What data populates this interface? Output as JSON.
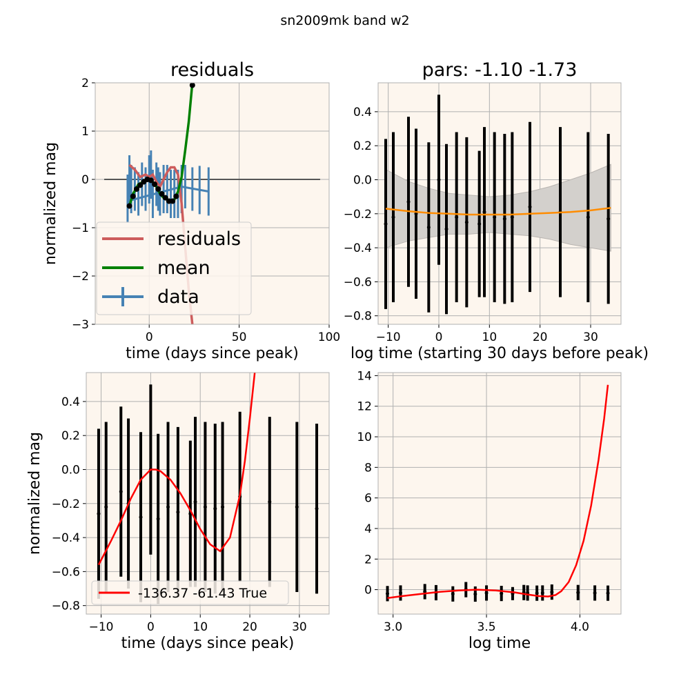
{
  "figure": {
    "title": "sn2009mk band w2"
  },
  "colors": {
    "background": "#fdf6ee",
    "grid": "#b0b0b0",
    "residuals": "#cd5c5c",
    "mean": "#008000",
    "data": "#4682b4",
    "zero_line": "#555555",
    "orange": "#ff8c00",
    "band": "#d3d0cc",
    "fit": "#ff0000",
    "errorbar": "#000000"
  },
  "chart_data": [
    {
      "type": "line",
      "title": "residuals",
      "xlabel": "time (days since peak)",
      "ylabel": "normalized mag",
      "xlim": [
        -30,
        100
      ],
      "ylim": [
        -3,
        2
      ],
      "xticks": [
        0,
        50,
        100
      ],
      "yticks": [
        -3,
        -2,
        -1,
        0,
        1,
        2
      ],
      "grid": true,
      "legend": {
        "placement": "lower-left",
        "entries": [
          "residuals",
          "mean",
          "data"
        ]
      },
      "zero_line": {
        "x": [
          -25,
          95
        ],
        "y": 0
      },
      "data_series": {
        "name": "data",
        "x": [
          -12,
          -11,
          -10,
          -8,
          -6,
          -4,
          -2,
          0,
          1,
          2,
          4,
          5,
          6,
          8,
          10,
          12,
          14,
          16,
          18,
          20,
          24,
          28,
          33
        ],
        "y": [
          -0.4,
          0.0,
          -0.2,
          -0.2,
          -0.3,
          -0.1,
          -0.2,
          0.0,
          0.1,
          -0.3,
          -0.1,
          -0.2,
          -0.3,
          -0.2,
          -0.2,
          -0.3,
          -0.3,
          -0.3,
          -0.2,
          -0.15,
          -0.2,
          -0.22,
          -0.25
        ],
        "yerr": [
          0.5,
          0.5,
          0.5,
          0.45,
          0.45,
          0.45,
          0.45,
          0.5,
          0.5,
          0.5,
          0.45,
          0.45,
          0.45,
          0.5,
          0.5,
          0.5,
          0.5,
          0.5,
          0.5,
          0.45,
          0.45,
          0.5,
          0.5
        ]
      },
      "data_line": {
        "x": [
          -12,
          18,
          33
        ],
        "y": [
          -0.45,
          -0.15,
          -0.25
        ]
      },
      "mean_series": {
        "name": "mean",
        "x": [
          -11,
          -9,
          -6,
          -3,
          0,
          2,
          4,
          6,
          8,
          10,
          12,
          14,
          16,
          18,
          20,
          22,
          24
        ],
        "y": [
          -0.55,
          -0.3,
          -0.1,
          -0.05,
          0.0,
          -0.05,
          -0.15,
          -0.3,
          -0.38,
          -0.42,
          -0.45,
          -0.42,
          -0.25,
          0.05,
          0.6,
          1.2,
          2.0
        ]
      },
      "mean_points": {
        "x": [
          -11,
          -9,
          -7,
          -5,
          -3,
          -1,
          1,
          3,
          5,
          7,
          9,
          11,
          13,
          15,
          24
        ],
        "y": [
          -0.55,
          -0.35,
          -0.2,
          -0.12,
          -0.05,
          0.0,
          -0.02,
          -0.1,
          -0.2,
          -0.3,
          -0.38,
          -0.45,
          -0.45,
          -0.35,
          1.95
        ]
      },
      "residuals_series": {
        "name": "residuals",
        "x": [
          -11,
          -8,
          -5,
          -2,
          0,
          2,
          4,
          6,
          8,
          10,
          12,
          14,
          16,
          18,
          20,
          22,
          24
        ],
        "y": [
          0.3,
          0.2,
          0.05,
          0.1,
          0.05,
          0.1,
          -0.05,
          -0.15,
          0.0,
          0.15,
          0.25,
          0.25,
          0.1,
          -0.5,
          -1.4,
          -2.3,
          -3.0
        ]
      }
    },
    {
      "type": "line",
      "title": "pars: -1.10 -1.73",
      "xlabel": "log time (starting 30 days before peak)",
      "ylabel": "",
      "xlim": [
        -12,
        36
      ],
      "ylim": [
        -0.85,
        0.57
      ],
      "xticks": [
        -10,
        0,
        10,
        20,
        30
      ],
      "yticks": [
        -0.8,
        -0.6,
        -0.4,
        -0.2,
        0.0,
        0.2,
        0.4
      ],
      "grid": true,
      "points": {
        "x": [
          -10.5,
          -9,
          -6,
          -4.5,
          -2,
          0,
          1.5,
          3.5,
          5.5,
          8,
          9,
          11,
          13,
          14.5,
          18,
          24,
          29.5,
          33.5
        ],
        "y": [
          -0.26,
          -0.22,
          -0.13,
          -0.2,
          -0.28,
          0.0,
          -0.29,
          -0.22,
          -0.25,
          -0.26,
          -0.19,
          -0.22,
          -0.23,
          -0.22,
          -0.16,
          -0.19,
          -0.22,
          -0.23
        ],
        "yerr": [
          0.5,
          0.5,
          0.5,
          0.5,
          0.5,
          0.5,
          0.5,
          0.5,
          0.5,
          0.43,
          0.5,
          0.5,
          0.5,
          0.5,
          0.5,
          0.5,
          0.5,
          0.5
        ]
      },
      "mean_curve": {
        "x": [
          -10.5,
          -6,
          -2,
          2,
          6,
          10,
          14,
          18,
          22,
          26,
          30,
          34
        ],
        "y": [
          -0.17,
          -0.185,
          -0.195,
          -0.2,
          -0.205,
          -0.205,
          -0.205,
          -0.2,
          -0.195,
          -0.19,
          -0.18,
          -0.165
        ]
      },
      "band": {
        "x": [
          -10.5,
          -6,
          -2,
          2,
          6,
          10,
          14,
          18,
          22,
          26,
          30,
          34
        ],
        "upper": [
          0.06,
          -0.01,
          -0.05,
          -0.08,
          -0.09,
          -0.1,
          -0.09,
          -0.07,
          -0.04,
          0.0,
          0.04,
          0.09
        ],
        "lower": [
          -0.4,
          -0.36,
          -0.34,
          -0.32,
          -0.32,
          -0.31,
          -0.32,
          -0.33,
          -0.35,
          -0.38,
          -0.4,
          -0.42
        ]
      }
    },
    {
      "type": "line",
      "title": "",
      "xlabel": "time (days since peak)",
      "ylabel": "normalized mag",
      "xlim": [
        -13,
        36
      ],
      "ylim": [
        -0.85,
        0.57
      ],
      "xticks": [
        -10,
        0,
        10,
        20,
        30
      ],
      "yticks": [
        -0.8,
        -0.6,
        -0.4,
        -0.2,
        0.0,
        0.2,
        0.4
      ],
      "grid": true,
      "legend": {
        "placement": "lower-left",
        "entries": [
          "-136.37 -61.43 True"
        ]
      },
      "points": {
        "x": [
          -10.5,
          -9,
          -6,
          -4.5,
          -2,
          0,
          1.5,
          3.5,
          5.5,
          8,
          9,
          11,
          13,
          14.5,
          18,
          24,
          29.5,
          33.5
        ],
        "y": [
          -0.26,
          -0.22,
          -0.13,
          -0.2,
          -0.28,
          0.0,
          -0.29,
          -0.22,
          -0.25,
          -0.26,
          -0.19,
          -0.22,
          -0.23,
          -0.22,
          -0.16,
          -0.19,
          -0.22,
          -0.23
        ],
        "yerr": [
          0.5,
          0.5,
          0.5,
          0.5,
          0.5,
          0.5,
          0.5,
          0.5,
          0.5,
          0.43,
          0.5,
          0.5,
          0.5,
          0.5,
          0.5,
          0.5,
          0.5,
          0.5
        ]
      },
      "fit_curve": {
        "name": "-136.37 -61.43 True",
        "x": [
          -10.5,
          -8,
          -6,
          -4,
          -2,
          0,
          1,
          2,
          4,
          6,
          8,
          10,
          12,
          14,
          16,
          18,
          19,
          20,
          21
        ],
        "y": [
          -0.56,
          -0.42,
          -0.3,
          -0.17,
          -0.06,
          0.0,
          0.0,
          -0.01,
          -0.06,
          -0.14,
          -0.24,
          -0.35,
          -0.44,
          -0.48,
          -0.4,
          -0.15,
          0.05,
          0.3,
          0.57
        ]
      }
    },
    {
      "type": "line",
      "title": "",
      "xlabel": "log time",
      "ylabel": "",
      "xlim": [
        2.92,
        4.22
      ],
      "ylim": [
        -1.6,
        14.2
      ],
      "xticks": [
        3.0,
        3.5,
        4.0
      ],
      "xtick_labels": [
        "3.0",
        "3.5",
        "4.0"
      ],
      "yticks": [
        0,
        2,
        4,
        6,
        8,
        10,
        12,
        14
      ],
      "grid": true,
      "points": {
        "x": [
          2.97,
          3.04,
          3.17,
          3.23,
          3.32,
          3.39,
          3.44,
          3.5,
          3.58,
          3.64,
          3.7,
          3.72,
          3.77,
          3.8,
          3.85,
          3.99,
          4.08,
          4.15
        ],
        "y": [
          -0.26,
          -0.22,
          -0.13,
          -0.2,
          -0.28,
          0.0,
          -0.29,
          -0.22,
          -0.25,
          -0.26,
          -0.19,
          -0.22,
          -0.23,
          -0.22,
          -0.16,
          -0.19,
          -0.22,
          -0.23
        ],
        "yerr": [
          0.5,
          0.5,
          0.5,
          0.5,
          0.5,
          0.5,
          0.5,
          0.5,
          0.5,
          0.43,
          0.5,
          0.5,
          0.5,
          0.5,
          0.5,
          0.5,
          0.5,
          0.5
        ]
      },
      "fit_curve": {
        "x": [
          2.97,
          3.05,
          3.15,
          3.25,
          3.35,
          3.45,
          3.55,
          3.65,
          3.72,
          3.78,
          3.83,
          3.87,
          3.9,
          3.94,
          3.98,
          4.02,
          4.06,
          4.1,
          4.13,
          4.15
        ],
        "y": [
          -0.55,
          -0.42,
          -0.28,
          -0.14,
          -0.05,
          0.0,
          -0.05,
          -0.18,
          -0.32,
          -0.42,
          -0.45,
          -0.35,
          -0.1,
          0.5,
          1.6,
          3.2,
          5.5,
          8.5,
          11.2,
          13.4
        ]
      }
    }
  ]
}
